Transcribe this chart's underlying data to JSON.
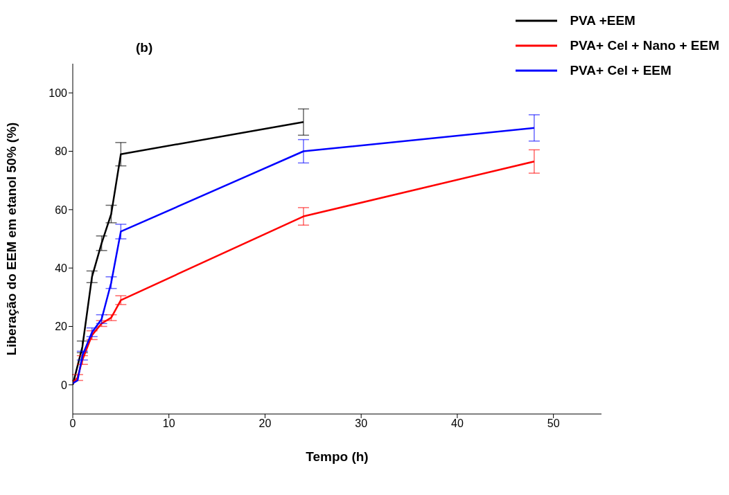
{
  "chart_data": {
    "type": "line",
    "title": "(b)",
    "xlabel": "Tempo (h)",
    "ylabel": "Liberação do EEM em etanol 50% (%)",
    "x": [
      0,
      0.5,
      1,
      2,
      3,
      4,
      5,
      24,
      48
    ],
    "series": [
      {
        "name": "PVA +EEM",
        "color": "#000000",
        "values": [
          0,
          null,
          13,
          37,
          48.5,
          58.5,
          79,
          90,
          null
        ],
        "errors": [
          null,
          null,
          2,
          2,
          2.5,
          3,
          4,
          4.5,
          null
        ]
      },
      {
        "name": "PVA+ Cel + Nano + EEM",
        "color": "#ff0000",
        "values": [
          0.5,
          2.5,
          8.5,
          17,
          21,
          23,
          29,
          57.7,
          76.5
        ],
        "errors": [
          null,
          1,
          1.5,
          1.5,
          1,
          1,
          1.5,
          3,
          4
        ]
      },
      {
        "name": "PVA+ Cel + EEM",
        "color": "#0000ff",
        "values": [
          0.5,
          1.5,
          10,
          18,
          22.5,
          35,
          52.5,
          80,
          88
        ],
        "errors": [
          null,
          null,
          1.5,
          1.5,
          1.5,
          2,
          2.5,
          4,
          4.5
        ]
      }
    ],
    "xlim": [
      0,
      55
    ],
    "xticks": [
      0,
      10,
      20,
      30,
      40,
      50
    ],
    "ylim": [
      -10,
      110
    ],
    "yticks": [
      0,
      20,
      40,
      60,
      80,
      100
    ],
    "grid": false,
    "legend": "top right",
    "marker": "none",
    "line_style": "solid"
  }
}
